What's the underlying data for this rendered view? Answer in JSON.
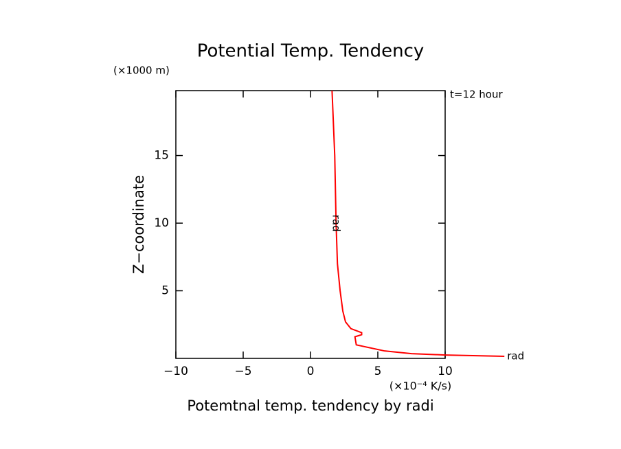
{
  "chart_data": {
    "type": "line",
    "title": "Potential Temp. Tendency",
    "y_unit": "(×1000 m)",
    "annotation": "t=12 hour",
    "y_label": "Z−coordinate",
    "x_unit": "(×10⁻⁴ K/s)",
    "x_label": "Potemtnal temp. tendency by radi",
    "xlim": [
      -10,
      10
    ],
    "ylim": [
      0,
      19.8
    ],
    "xticks": [
      {
        "value": -10,
        "label": "−10"
      },
      {
        "value": -5,
        "label": "−5"
      },
      0,
      5,
      10
    ],
    "yticks": [
      5,
      10,
      15
    ],
    "series": [
      {
        "name": "rad",
        "color": "#ff0000",
        "x": [
          1.6,
          1.8,
          1.9,
          2.0,
          2.2,
          2.4,
          2.6,
          3.0,
          3.8,
          3.8,
          3.3,
          3.4,
          5.5,
          7.5,
          10,
          14.4
        ],
        "values": [
          19.8,
          15,
          10,
          7,
          5,
          3.5,
          2.7,
          2.2,
          1.9,
          1.75,
          1.6,
          1.0,
          0.55,
          0.35,
          0.25,
          0.15
        ]
      }
    ]
  }
}
